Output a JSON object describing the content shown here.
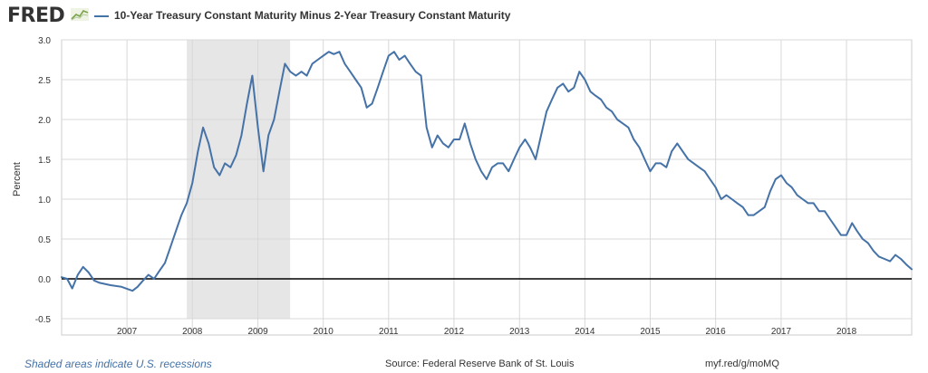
{
  "header": {
    "logo_text": "FRED",
    "logo_icon": "line-chart-icon",
    "series_title": "10-Year Treasury Constant Maturity Minus 2-Year Treasury Constant Maturity"
  },
  "colors": {
    "series": "#4572a7",
    "recession": "#e6e6e6",
    "zero_line": "#000000",
    "grid": "#d8d8d8"
  },
  "chart_data": {
    "type": "line",
    "title": "10-Year Treasury Constant Maturity Minus 2-Year Treasury Constant Maturity",
    "ylabel": "Percent",
    "xlabel": "",
    "x_range": [
      "2006-01-01",
      "2018-12-31"
    ],
    "ylim": [
      -0.5,
      3.0
    ],
    "yticks": [
      "3.0",
      "2.5",
      "2.0",
      "1.5",
      "1.0",
      "0.5",
      "0.0",
      "-0.5"
    ],
    "xticks": [
      "2007",
      "2008",
      "2009",
      "2010",
      "2011",
      "2012",
      "2013",
      "2014",
      "2015",
      "2016",
      "2017",
      "2018"
    ],
    "grid": true,
    "zero_line": true,
    "recession": {
      "start": "2007-12-01",
      "end": "2009-06-30"
    },
    "series": [
      {
        "name": "10-Year Treasury Constant Maturity Minus 2-Year Treasury Constant Maturity",
        "points": [
          [
            "2006-01-01",
            0.02
          ],
          [
            "2006-02-01",
            0.0
          ],
          [
            "2006-03-01",
            -0.12
          ],
          [
            "2006-04-01",
            0.05
          ],
          [
            "2006-05-01",
            0.15
          ],
          [
            "2006-06-01",
            0.08
          ],
          [
            "2006-07-01",
            -0.02
          ],
          [
            "2006-08-01",
            -0.05
          ],
          [
            "2006-10-01",
            -0.08
          ],
          [
            "2006-12-01",
            -0.1
          ],
          [
            "2007-02-01",
            -0.15
          ],
          [
            "2007-03-01",
            -0.1
          ],
          [
            "2007-04-01",
            -0.02
          ],
          [
            "2007-05-01",
            0.05
          ],
          [
            "2007-06-01",
            0.0
          ],
          [
            "2007-07-01",
            0.1
          ],
          [
            "2007-08-01",
            0.2
          ],
          [
            "2007-09-01",
            0.4
          ],
          [
            "2007-10-01",
            0.6
          ],
          [
            "2007-11-01",
            0.8
          ],
          [
            "2007-12-01",
            0.95
          ],
          [
            "2008-01-01",
            1.2
          ],
          [
            "2008-02-01",
            1.6
          ],
          [
            "2008-03-01",
            1.9
          ],
          [
            "2008-04-01",
            1.7
          ],
          [
            "2008-05-01",
            1.4
          ],
          [
            "2008-06-01",
            1.3
          ],
          [
            "2008-07-01",
            1.45
          ],
          [
            "2008-08-01",
            1.4
          ],
          [
            "2008-09-01",
            1.55
          ],
          [
            "2008-10-01",
            1.8
          ],
          [
            "2008-11-01",
            2.2
          ],
          [
            "2008-12-01",
            2.55
          ],
          [
            "2009-01-01",
            1.9
          ],
          [
            "2009-02-01",
            1.35
          ],
          [
            "2009-03-01",
            1.8
          ],
          [
            "2009-04-01",
            2.0
          ],
          [
            "2009-05-01",
            2.35
          ],
          [
            "2009-06-01",
            2.7
          ],
          [
            "2009-07-01",
            2.6
          ],
          [
            "2009-08-01",
            2.55
          ],
          [
            "2009-09-01",
            2.6
          ],
          [
            "2009-10-01",
            2.55
          ],
          [
            "2009-11-01",
            2.7
          ],
          [
            "2009-12-01",
            2.75
          ],
          [
            "2010-01-01",
            2.8
          ],
          [
            "2010-02-01",
            2.85
          ],
          [
            "2010-03-01",
            2.82
          ],
          [
            "2010-04-01",
            2.85
          ],
          [
            "2010-05-01",
            2.7
          ],
          [
            "2010-06-01",
            2.6
          ],
          [
            "2010-07-01",
            2.5
          ],
          [
            "2010-08-01",
            2.4
          ],
          [
            "2010-09-01",
            2.15
          ],
          [
            "2010-10-01",
            2.2
          ],
          [
            "2010-11-01",
            2.4
          ],
          [
            "2010-12-01",
            2.6
          ],
          [
            "2011-01-01",
            2.8
          ],
          [
            "2011-02-01",
            2.85
          ],
          [
            "2011-03-01",
            2.75
          ],
          [
            "2011-04-01",
            2.8
          ],
          [
            "2011-05-01",
            2.7
          ],
          [
            "2011-06-01",
            2.6
          ],
          [
            "2011-07-01",
            2.55
          ],
          [
            "2011-08-01",
            1.9
          ],
          [
            "2011-09-01",
            1.65
          ],
          [
            "2011-10-01",
            1.8
          ],
          [
            "2011-11-01",
            1.7
          ],
          [
            "2011-12-01",
            1.65
          ],
          [
            "2012-01-01",
            1.75
          ],
          [
            "2012-02-01",
            1.75
          ],
          [
            "2012-03-01",
            1.95
          ],
          [
            "2012-04-01",
            1.7
          ],
          [
            "2012-05-01",
            1.5
          ],
          [
            "2012-06-01",
            1.35
          ],
          [
            "2012-07-01",
            1.25
          ],
          [
            "2012-08-01",
            1.4
          ],
          [
            "2012-09-01",
            1.45
          ],
          [
            "2012-10-01",
            1.45
          ],
          [
            "2012-11-01",
            1.35
          ],
          [
            "2012-12-01",
            1.5
          ],
          [
            "2013-01-01",
            1.65
          ],
          [
            "2013-02-01",
            1.75
          ],
          [
            "2013-03-01",
            1.65
          ],
          [
            "2013-04-01",
            1.5
          ],
          [
            "2013-05-01",
            1.8
          ],
          [
            "2013-06-01",
            2.1
          ],
          [
            "2013-07-01",
            2.25
          ],
          [
            "2013-08-01",
            2.4
          ],
          [
            "2013-09-01",
            2.45
          ],
          [
            "2013-10-01",
            2.35
          ],
          [
            "2013-11-01",
            2.4
          ],
          [
            "2013-12-01",
            2.6
          ],
          [
            "2014-01-01",
            2.5
          ],
          [
            "2014-02-01",
            2.35
          ],
          [
            "2014-03-01",
            2.3
          ],
          [
            "2014-04-01",
            2.25
          ],
          [
            "2014-05-01",
            2.15
          ],
          [
            "2014-06-01",
            2.1
          ],
          [
            "2014-07-01",
            2.0
          ],
          [
            "2014-08-01",
            1.95
          ],
          [
            "2014-09-01",
            1.9
          ],
          [
            "2014-10-01",
            1.75
          ],
          [
            "2014-11-01",
            1.65
          ],
          [
            "2014-12-01",
            1.5
          ],
          [
            "2015-01-01",
            1.35
          ],
          [
            "2015-02-01",
            1.45
          ],
          [
            "2015-03-01",
            1.45
          ],
          [
            "2015-04-01",
            1.4
          ],
          [
            "2015-05-01",
            1.6
          ],
          [
            "2015-06-01",
            1.7
          ],
          [
            "2015-07-01",
            1.6
          ],
          [
            "2015-08-01",
            1.5
          ],
          [
            "2015-09-01",
            1.45
          ],
          [
            "2015-10-01",
            1.4
          ],
          [
            "2015-11-01",
            1.35
          ],
          [
            "2015-12-01",
            1.25
          ],
          [
            "2016-01-01",
            1.15
          ],
          [
            "2016-02-01",
            1.0
          ],
          [
            "2016-03-01",
            1.05
          ],
          [
            "2016-04-01",
            1.0
          ],
          [
            "2016-05-01",
            0.95
          ],
          [
            "2016-06-01",
            0.9
          ],
          [
            "2016-07-01",
            0.8
          ],
          [
            "2016-08-01",
            0.8
          ],
          [
            "2016-09-01",
            0.85
          ],
          [
            "2016-10-01",
            0.9
          ],
          [
            "2016-11-01",
            1.1
          ],
          [
            "2016-12-01",
            1.25
          ],
          [
            "2017-01-01",
            1.3
          ],
          [
            "2017-02-01",
            1.2
          ],
          [
            "2017-03-01",
            1.15
          ],
          [
            "2017-04-01",
            1.05
          ],
          [
            "2017-05-01",
            1.0
          ],
          [
            "2017-06-01",
            0.95
          ],
          [
            "2017-07-01",
            0.95
          ],
          [
            "2017-08-01",
            0.85
          ],
          [
            "2017-09-01",
            0.85
          ],
          [
            "2017-10-01",
            0.75
          ],
          [
            "2017-11-01",
            0.65
          ],
          [
            "2017-12-01",
            0.55
          ],
          [
            "2018-01-01",
            0.55
          ],
          [
            "2018-02-01",
            0.7
          ],
          [
            "2018-03-01",
            0.6
          ],
          [
            "2018-04-01",
            0.5
          ],
          [
            "2018-05-01",
            0.45
          ],
          [
            "2018-06-01",
            0.35
          ],
          [
            "2018-07-01",
            0.28
          ],
          [
            "2018-08-01",
            0.25
          ],
          [
            "2018-09-01",
            0.22
          ],
          [
            "2018-10-01",
            0.3
          ],
          [
            "2018-11-01",
            0.25
          ],
          [
            "2018-12-01",
            0.18
          ],
          [
            "2018-12-31",
            0.12
          ]
        ]
      }
    ]
  },
  "footer": {
    "recession_note": "Shaded areas indicate U.S. recessions",
    "source": "Source: Federal Reserve Bank of St. Louis",
    "link": "myf.red/g/moMQ"
  }
}
